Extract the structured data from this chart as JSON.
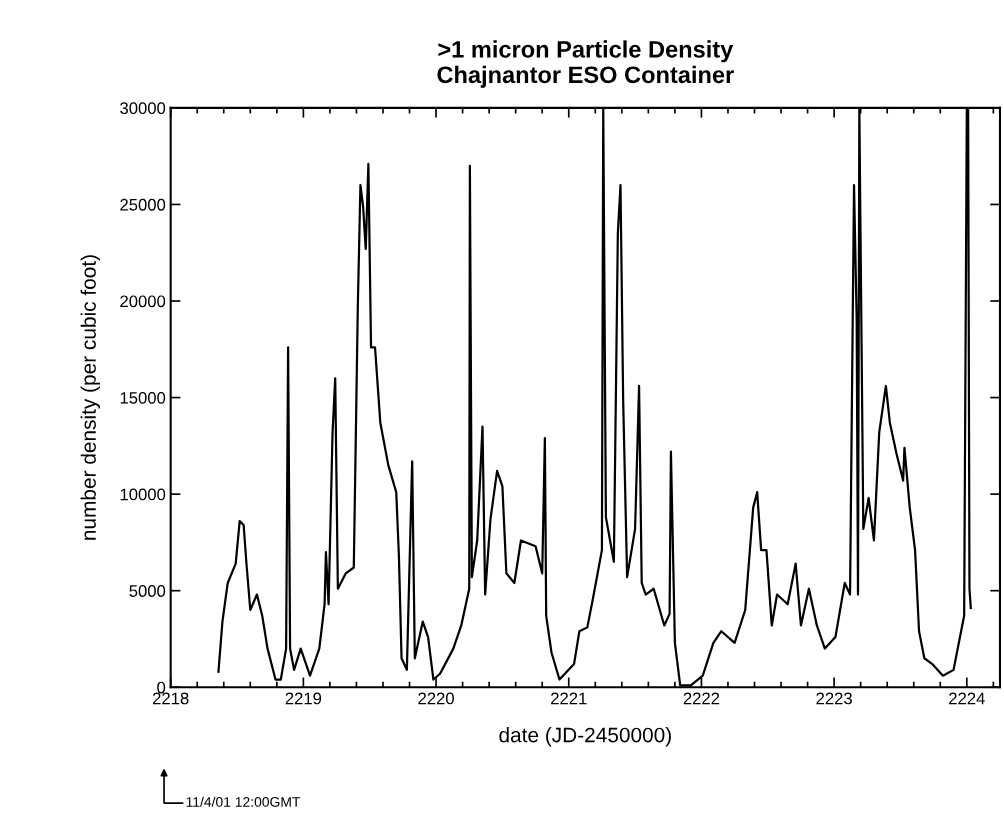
{
  "chart_data": {
    "type": "line",
    "title": ">1 micron Particle Density\nChajnantor ESO Container",
    "xlabel": "date (JD-2450000)",
    "ylabel": "number density (per cubic foot)",
    "annotations": [
      "11/4/01 12:00GMT"
    ],
    "xlim": [
      2218,
      2224.25
    ],
    "xticks": [
      2218,
      2219,
      2220,
      2221,
      2222,
      2223,
      2224
    ],
    "ylim": [
      0,
      30000
    ],
    "yticks": [
      0,
      5000,
      10000,
      15000,
      20000,
      25000,
      30000
    ],
    "grid": false,
    "legend": false,
    "series": [
      {
        "color": "#000000",
        "x": [
          2218.36,
          2218.39,
          2218.43,
          2218.49,
          2218.52,
          2218.55,
          2218.57,
          2218.6,
          2218.65,
          2218.69,
          2218.73,
          2218.79,
          2218.83,
          2218.87,
          2218.885,
          2218.9,
          2218.93,
          2218.98,
          2219.05,
          2219.12,
          2219.16,
          2219.17,
          2219.19,
          2219.22,
          2219.24,
          2219.26,
          2219.32,
          2219.38,
          2219.41,
          2219.43,
          2219.45,
          2219.47,
          2219.49,
          2219.51,
          2219.54,
          2219.58,
          2219.64,
          2219.7,
          2219.72,
          2219.74,
          2219.78,
          2219.82,
          2219.84,
          2219.9,
          2219.94,
          2219.98,
          2220.03,
          2220.13,
          2220.19,
          2220.25,
          2220.255,
          2220.27,
          2220.31,
          2220.35,
          2220.37,
          2220.41,
          2220.46,
          2220.5,
          2220.53,
          2220.59,
          2220.64,
          2220.75,
          2220.8,
          2220.82,
          2220.83,
          2220.87,
          2220.93,
          2221.04,
          2221.08,
          2221.14,
          2221.18,
          2221.25,
          2221.26,
          2221.28,
          2221.34,
          2221.37,
          2221.39,
          2221.41,
          2221.44,
          2221.5,
          2221.53,
          2221.55,
          2221.58,
          2221.64,
          2221.72,
          2221.76,
          2221.77,
          2221.8,
          2221.84,
          2221.92,
          2222.01,
          2222.09,
          2222.15,
          2222.25,
          2222.33,
          2222.39,
          2222.42,
          2222.45,
          2222.49,
          2222.53,
          2222.57,
          2222.65,
          2222.71,
          2222.75,
          2222.81,
          2222.87,
          2222.93,
          2223.01,
          2223.08,
          2223.12,
          2223.15,
          2223.17,
          2223.18,
          2223.19,
          2223.22,
          2223.26,
          2223.3,
          2223.34,
          2223.39,
          2223.42,
          2223.47,
          2223.52,
          2223.53,
          2223.57,
          2223.61,
          2223.64,
          2223.68,
          2223.74,
          2223.82,
          2223.9,
          2223.94,
          2223.98,
          2224.0,
          2224.01,
          2224.02,
          2224.03
        ],
        "values": [
          800,
          3400,
          5400,
          6400,
          8600,
          8400,
          6500,
          4000,
          4800,
          3700,
          2000,
          400,
          400,
          2000,
          17600,
          2000,
          900,
          2000,
          600,
          2000,
          4300,
          7000,
          4300,
          13200,
          16000,
          5100,
          5900,
          6200,
          19600,
          26000,
          24900,
          22700,
          27100,
          17600,
          17600,
          13700,
          11500,
          10100,
          6800,
          1500,
          900,
          11700,
          1500,
          3400,
          2600,
          400,
          700,
          2000,
          3200,
          5100,
          27000,
          5700,
          7600,
          13500,
          4800,
          8700,
          11200,
          10400,
          5900,
          5400,
          7600,
          7300,
          5900,
          12900,
          3700,
          1800,
          400,
          1200,
          2900,
          3100,
          4500,
          7100,
          30000,
          8800,
          6500,
          23500,
          26000,
          14900,
          5700,
          8200,
          15600,
          5400,
          4800,
          5100,
          3200,
          3800,
          12200,
          2300,
          100,
          100,
          600,
          2300,
          2900,
          2300,
          4000,
          9300,
          10100,
          7100,
          7100,
          3200,
          4800,
          4300,
          6400,
          3200,
          5100,
          3200,
          2000,
          2600,
          5400,
          4800,
          26000,
          19000,
          4800,
          30000,
          8200,
          9800,
          7600,
          13200,
          15600,
          13700,
          12100,
          10700,
          12400,
          9300,
          7100,
          2900,
          1500,
          1200,
          600,
          900,
          2300,
          3700,
          30000,
          30000,
          5100,
          4100
        ]
      }
    ]
  }
}
